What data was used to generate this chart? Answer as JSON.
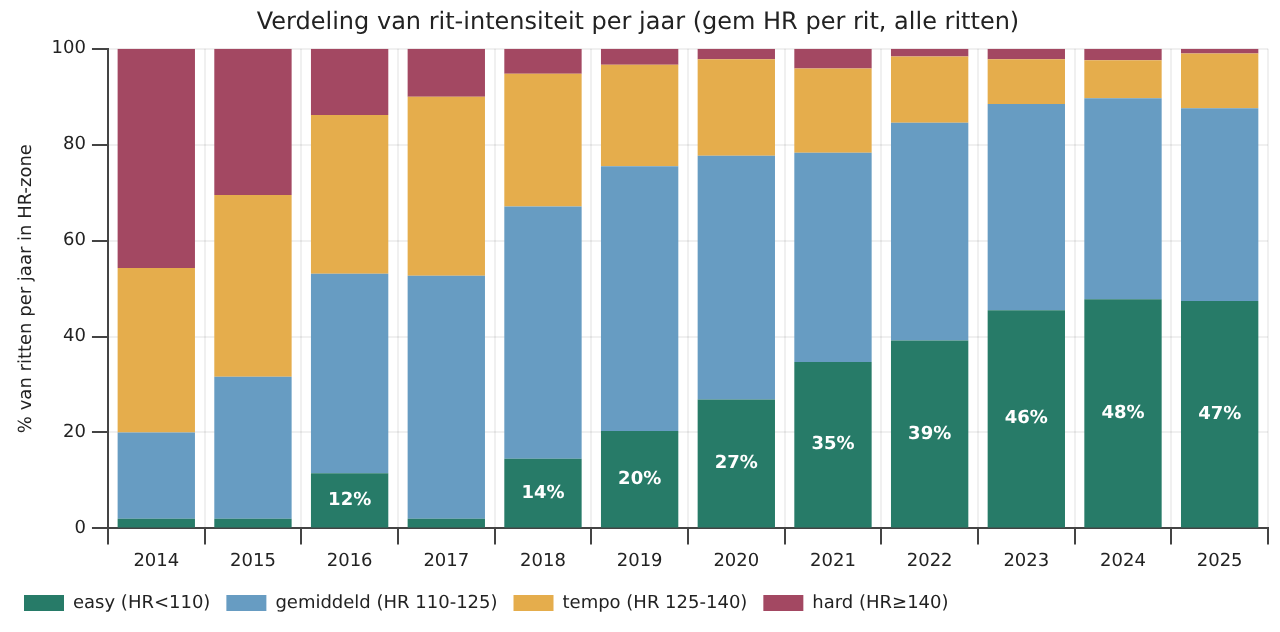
{
  "chart_data": {
    "type": "bar",
    "title": "Verdeling van rit-intensiteit per jaar (gem HR per rit, alle ritten)",
    "ylabel": "% van ritten per jaar in HR-zone",
    "categories": [
      "2014",
      "2015",
      "2016",
      "2017",
      "2018",
      "2019",
      "2020",
      "2021",
      "2022",
      "2023",
      "2024",
      "2025"
    ],
    "stacked": true,
    "ylim": [
      0,
      100
    ],
    "yticks": [
      0,
      20,
      40,
      60,
      80,
      100
    ],
    "grid": true,
    "legend": "bottom left",
    "series": [
      {
        "name": "easy (HR<110)",
        "color": "#277b68",
        "values": [
          2,
          2,
          11.5,
          2,
          14.5,
          20.3,
          26.9,
          34.7,
          39.2,
          45.5,
          47.8,
          47.4
        ],
        "value_labels": [
          null,
          null,
          "12%",
          null,
          "14%",
          "20%",
          "27%",
          "35%",
          "39%",
          "46%",
          "48%",
          "47%"
        ]
      },
      {
        "name": "gemiddeld (HR 110-125)",
        "color": "#679cc2",
        "values": [
          18,
          29.6,
          41.6,
          50.7,
          52.6,
          55.2,
          50.8,
          43.6,
          45.4,
          43,
          41.9,
          40.2
        ]
      },
      {
        "name": "tempo (HR 125-140)",
        "color": "#e5ad4c",
        "values": [
          34.3,
          37.9,
          33.1,
          37.3,
          27.7,
          21.2,
          20.1,
          17.6,
          13.8,
          9.3,
          7.9,
          11.4
        ]
      },
      {
        "name": "hard (HR≥140)",
        "color": "#a34862",
        "values": [
          45.7,
          30.5,
          13.8,
          10,
          5.2,
          3.3,
          2.2,
          4.1,
          1.6,
          2.2,
          2.4,
          1
        ]
      }
    ]
  }
}
